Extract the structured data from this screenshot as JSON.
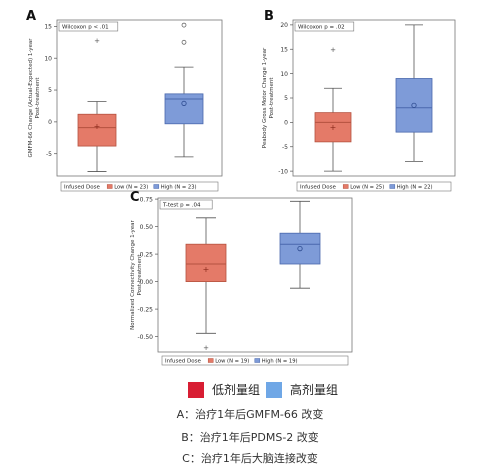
{
  "colors": {
    "low": "#e47a68",
    "low_edge": "#b5523f",
    "high": "#7e9bd8",
    "high_edge": "#4a68ad",
    "legend_low": "#d81e33",
    "legend_high": "#6fa7e6"
  },
  "chart_data": [
    {
      "type": "box",
      "panel": "A",
      "test_label": "Wilcoxon p < .01",
      "ylabel": "GMFM-66 Change (Actual-Expected) 1-year Post-treatment",
      "ylim": [
        -8.5,
        16
      ],
      "yticks": [
        -5,
        0,
        5,
        10,
        15
      ],
      "legend_title": "Infused Dose",
      "groups": [
        {
          "name": "Low",
          "legend": "Low (N = 23)",
          "min": -7.8,
          "q1": -3.8,
          "median": -0.9,
          "q3": 1.2,
          "max": 3.2,
          "mean": -0.7,
          "outliers": [
            12.8
          ]
        },
        {
          "name": "High",
          "legend": "High (N = 23)",
          "min": -5.5,
          "q1": -0.3,
          "median": 3.6,
          "q3": 4.4,
          "max": 8.6,
          "mean": 2.9,
          "outliers": [
            12.5,
            15.2
          ]
        }
      ]
    },
    {
      "type": "box",
      "panel": "B",
      "test_label": "Wilcoxon p = .02",
      "ylabel": "Peabody Gross Motor Change 1-year Post-treatment",
      "ylim": [
        -11,
        21
      ],
      "yticks": [
        -10,
        -5,
        0,
        5,
        10,
        15,
        20
      ],
      "legend_title": "Infused Dose",
      "groups": [
        {
          "name": "Low",
          "legend": "Low (N = 25)",
          "min": -10,
          "q1": -4,
          "median": 0,
          "q3": 2,
          "max": 7,
          "mean": -1,
          "outliers": [
            15
          ]
        },
        {
          "name": "High",
          "legend": "High (N = 22)",
          "min": -8,
          "q1": -2,
          "median": 3,
          "q3": 9,
          "max": 20,
          "mean": 3.5,
          "outliers": []
        }
      ]
    },
    {
      "type": "box",
      "panel": "C",
      "test_label": "T-test p = .04",
      "ylabel": "Normalized Connectivity Change 1-year Post-treatment",
      "ylim": [
        -0.64,
        0.76
      ],
      "yticks": [
        -0.5,
        -0.25,
        0.0,
        0.25,
        0.5,
        0.75
      ],
      "yticklabels": [
        "-0.50",
        "-0.25",
        "0.00",
        "0.25",
        "0.50",
        "0.75"
      ],
      "legend_title": "Infused Dose",
      "groups": [
        {
          "name": "Low",
          "legend": "Low (N = 19)",
          "min": -0.47,
          "q1": 0.0,
          "median": 0.16,
          "q3": 0.34,
          "max": 0.58,
          "mean": 0.11,
          "outliers": [
            -0.6
          ]
        },
        {
          "name": "High",
          "legend": "High (N = 19)",
          "min": -0.06,
          "q1": 0.16,
          "median": 0.34,
          "q3": 0.44,
          "max": 0.73,
          "mean": 0.3,
          "outliers": []
        }
      ]
    }
  ],
  "legend": {
    "low_label": "低剂量组",
    "high_label": "高剂量组"
  },
  "captions": [
    "A：治疗1年后GMFM-66 改变",
    "B：治疗1年后PDMS-2 改变",
    "C：治疗1年后大脑连接改变"
  ]
}
